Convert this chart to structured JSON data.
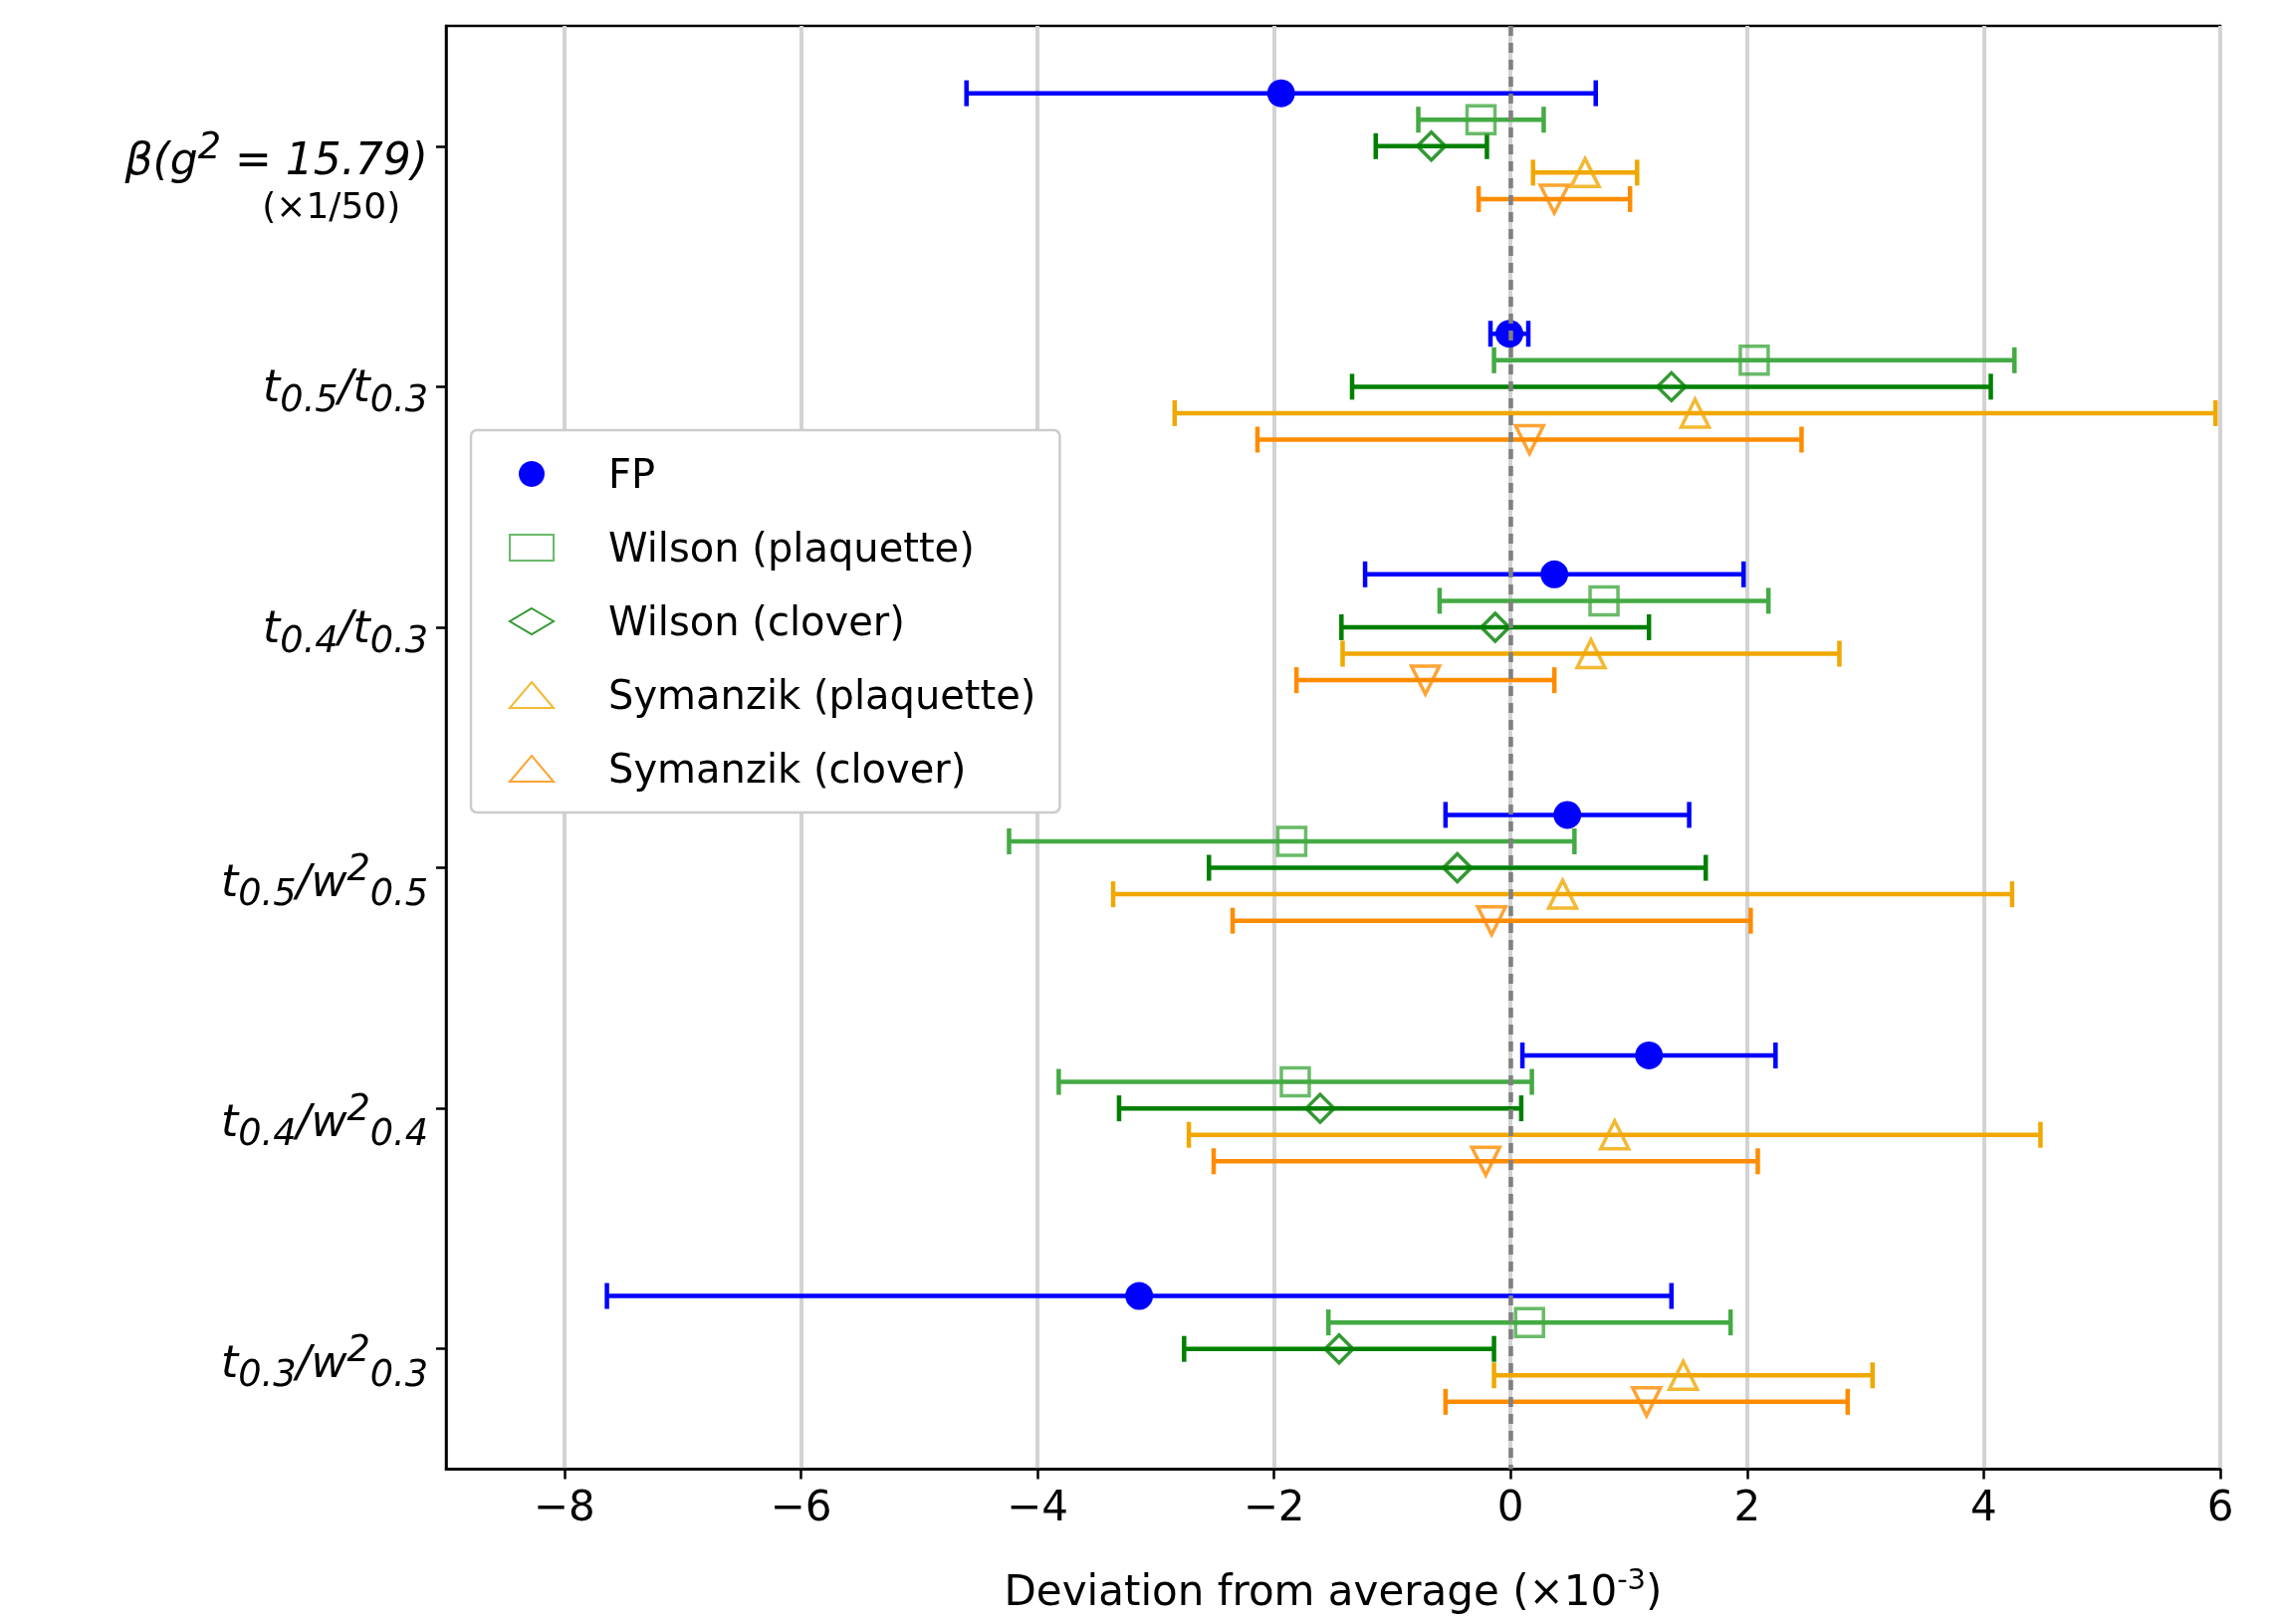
{
  "chart_data": {
    "type": "scatter",
    "orientation": "horizontal",
    "xlabel": "Deviation from average (×10$^{-3}$)",
    "categories": [
      "β(g$^{2}$ = 15.79)\n(×1/50)",
      "t$_{0.5}$/t$_{0.3}$",
      "t$_{0.4}$/t$_{0.3}$",
      "t$_{0.5}$/w$^{2}$$_{0.5}$",
      "t$_{0.4}$/w$^{2}$$_{0.4}$",
      "t$_{0.3}$/w$^{2}$$_{0.3}$"
    ],
    "xlim": [
      -9,
      6
    ],
    "xticks": [
      {
        "value": -8,
        "label": "−8"
      },
      {
        "value": -6,
        "label": "−6"
      },
      {
        "value": -4,
        "label": "−4"
      },
      {
        "value": -2,
        "label": "−2"
      },
      0,
      2,
      4,
      6
    ],
    "grid": "x",
    "legend": "left",
    "ref_lines": [
      {
        "axis": "x",
        "value": 0,
        "color": "#808080",
        "line_style": "dashed"
      }
    ],
    "series": [
      {
        "name": "FP",
        "color": "#0000ff",
        "marker": "circle",
        "values": [
          -1.94,
          -0.01,
          0.37,
          0.48,
          1.17,
          -3.14
        ],
        "errors": [
          2.66,
          0.16,
          1.6,
          1.03,
          1.07,
          4.5
        ]
      },
      {
        "name": "Wilson (plaquette)",
        "color": "#44aa44",
        "marker": "square",
        "values": [
          -0.25,
          2.06,
          0.79,
          -1.85,
          -1.82,
          0.16
        ],
        "errors": [
          0.53,
          2.2,
          1.39,
          2.39,
          2.0,
          1.7
        ]
      },
      {
        "name": "Wilson (clover)",
        "color": "#008000",
        "marker": "diamond",
        "values": [
          -0.67,
          1.36,
          -0.13,
          -0.45,
          -1.61,
          -1.45
        ],
        "errors": [
          0.47,
          2.7,
          1.3,
          2.1,
          1.7,
          1.31
        ]
      },
      {
        "name": "Symanzik (plaquette)",
        "color": "#f0a800",
        "marker": "triangle",
        "values": [
          0.63,
          1.56,
          0.68,
          0.44,
          0.88,
          1.46
        ],
        "errors": [
          0.44,
          4.4,
          2.1,
          3.8,
          3.6,
          1.6
        ]
      },
      {
        "name": "Symanzik (clover)",
        "color": "#ff8c00",
        "marker": "triangle_down",
        "values": [
          0.37,
          0.16,
          -0.72,
          -0.16,
          -0.21,
          1.15
        ],
        "errors": [
          0.64,
          2.3,
          1.09,
          2.19,
          2.3,
          1.7
        ]
      }
    ]
  }
}
